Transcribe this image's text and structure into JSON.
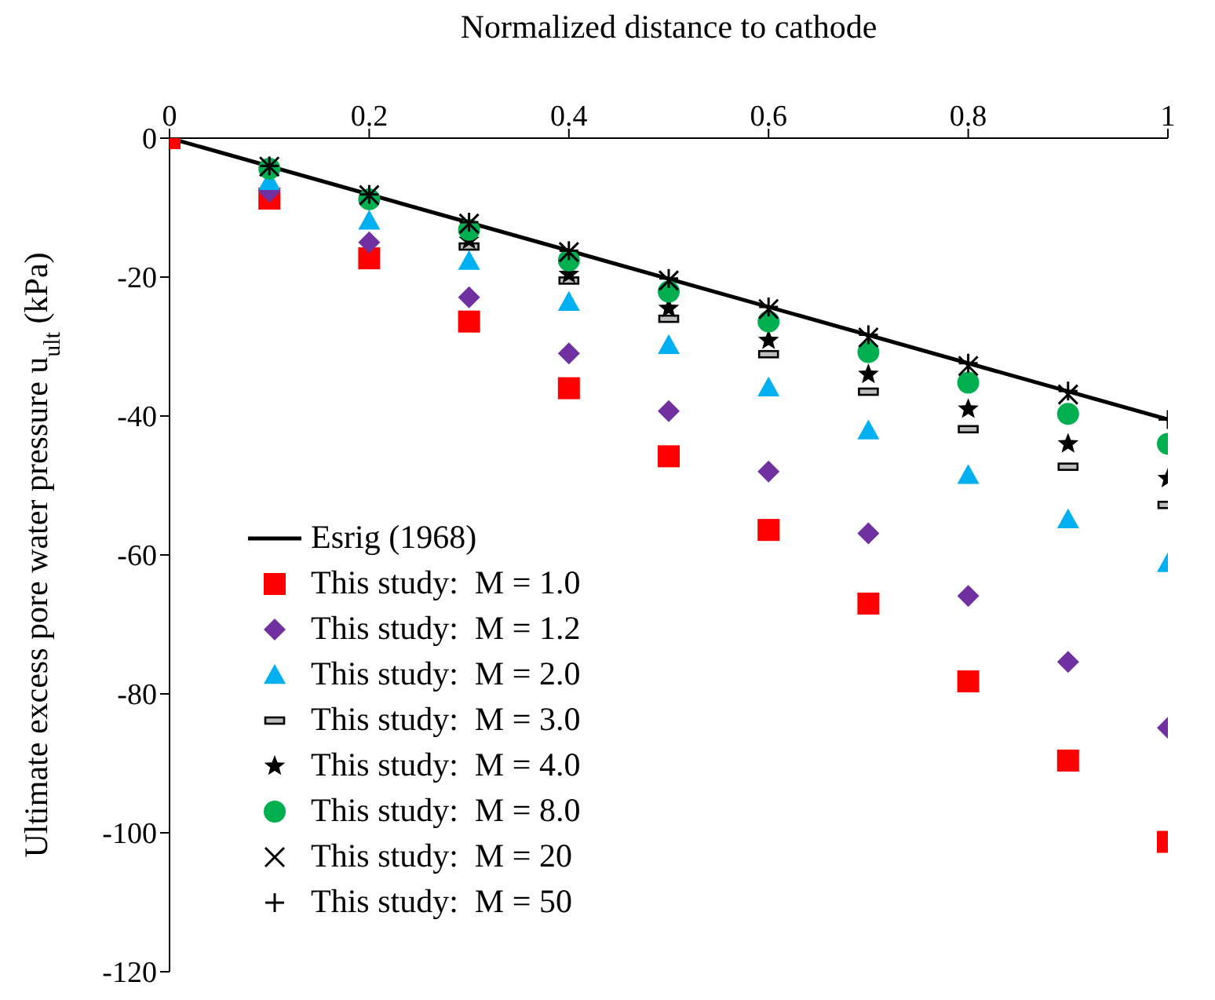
{
  "chart_data": {
    "type": "scatter",
    "xlabel": "Normalized distance to cathode",
    "ylabel": "Ultimate excess pore water pressure u$_{ult}$ (kPa)",
    "x": [
      0,
      0.1,
      0.2,
      0.3,
      0.4,
      0.5,
      0.6,
      0.7,
      0.8,
      0.9,
      1.0
    ],
    "xlim": [
      0,
      1
    ],
    "xticks": [
      0,
      0.2,
      0.4,
      0.6,
      0.8,
      1
    ],
    "ylim": [
      -120,
      0
    ],
    "yticks": [
      -120,
      -100,
      -80,
      -60,
      -40,
      -20,
      0
    ],
    "grid": false,
    "legend": "bottom left",
    "series": [
      {
        "name": "Esrig (1968)",
        "type": "line",
        "color": "#000000",
        "x": [
          0,
          1
        ],
        "values": [
          0,
          -40.5
        ]
      },
      {
        "name": "This study:  M = 1.0",
        "marker": "square",
        "color": "#ff0000",
        "values": [
          0,
          -8.7,
          -17.3,
          -26.4,
          -36,
          -45.8,
          -56.4,
          -67,
          -78.2,
          -89.6,
          -101.3
        ]
      },
      {
        "name": "This study:  M = 1.2",
        "marker": "diamond",
        "color": "#7030a0",
        "values": [
          null,
          -7.7,
          -15,
          -22.9,
          -31,
          -39.3,
          -48,
          -56.9,
          -65.9,
          -75.4,
          -84.9
        ]
      },
      {
        "name": "This study:  M = 2.0",
        "marker": "triangle",
        "color": "#00b0f0",
        "values": [
          null,
          -6.2,
          -11.9,
          -17.7,
          -23.6,
          -29.8,
          -35.9,
          -42.1,
          -48.5,
          -54.9,
          -61.2
        ]
      },
      {
        "name": "This study:  M = 3.0",
        "color": "#000000",
        "values": [
          null,
          null,
          null,
          -15.6,
          -20.5,
          -26,
          -31.1,
          -36.5,
          -41.9,
          -47.3,
          -52.8
        ]
      },
      {
        "name": "This study:  M = 4.0",
        "marker": "star",
        "color": "#000000",
        "values": [
          null,
          null,
          null,
          -14.7,
          -19.6,
          -24.5,
          -29.1,
          -34,
          -39,
          -44,
          -49
        ]
      },
      {
        "name": "This study:  M = 8.0",
        "marker": "circle",
        "color": "#00b050",
        "values": [
          null,
          -4.4,
          -8.8,
          -13.2,
          -17.6,
          -22.1,
          -26.4,
          -30.8,
          -35.2,
          -39.7,
          -44
        ]
      },
      {
        "name": "This study:  M = 20",
        "marker": "cross",
        "color": "#000000",
        "values": [
          null,
          -4.1,
          -8.2,
          -12.3,
          -16.4,
          -20.5,
          -24.6,
          -28.7,
          -32.8,
          -36.9,
          null
        ]
      },
      {
        "name": "This study:  M = 50",
        "marker": "plus",
        "color": "#000000",
        "values": [
          null,
          -4,
          -8.1,
          -12.1,
          -16.2,
          -20.2,
          -24.3,
          -28.3,
          -32.4,
          -36.4,
          -40.5
        ]
      }
    ]
  }
}
